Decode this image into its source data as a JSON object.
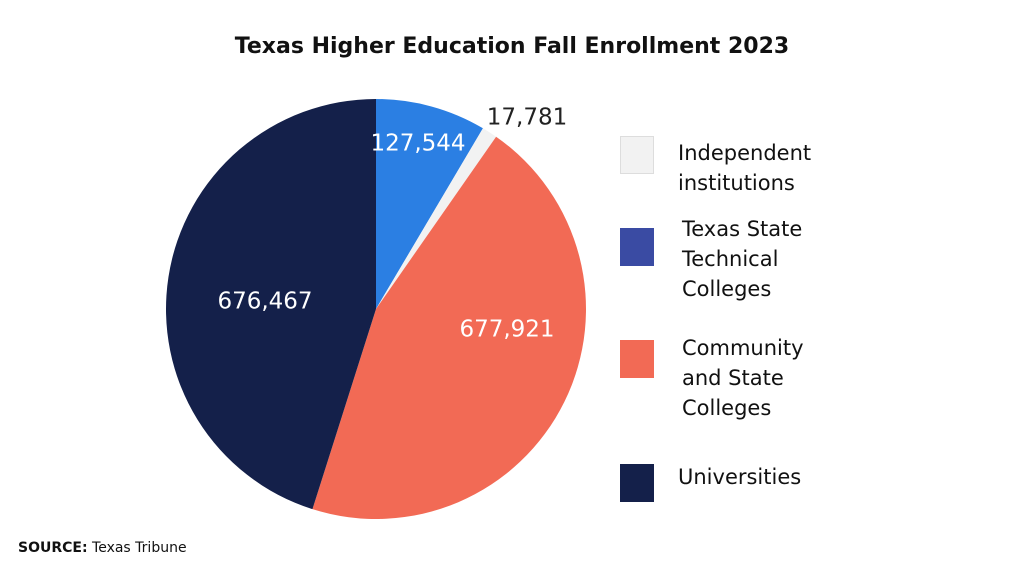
{
  "title": "Texas Higher Education Fall Enrollment 2023",
  "source": {
    "label": "SOURCE:",
    "value": "Texas Tribune"
  },
  "chart_data": {
    "type": "pie",
    "title": "Texas Higher Education Fall Enrollment 2023",
    "slices": [
      {
        "label": "Texas State Technical Colleges",
        "value": 127544,
        "display": "127,544",
        "color": "#2b7fe3",
        "label_color": "#ffffff"
      },
      {
        "label": "Independent institutions",
        "value": 17781,
        "display": "17,781",
        "color": "#f2f2f2",
        "label_color": "#222222",
        "label_outside": true
      },
      {
        "label": "Community and State Colleges",
        "value": 677921,
        "display": "677,921",
        "color": "#f26a55",
        "label_color": "#ffffff"
      },
      {
        "label": "Universities",
        "value": 676467,
        "display": "676,467",
        "color": "#14204a",
        "label_color": "#ffffff"
      }
    ]
  },
  "legend": [
    {
      "text": "Independent\ninstitutions",
      "color": "#f2f2f2"
    },
    {
      "text": "Texas State\nTechnical\nColleges",
      "color": "#3a4ba3"
    },
    {
      "text": "Community\nand State\nColleges",
      "color": "#f26a55"
    },
    {
      "text": "Universities",
      "color": "#14204a"
    }
  ]
}
